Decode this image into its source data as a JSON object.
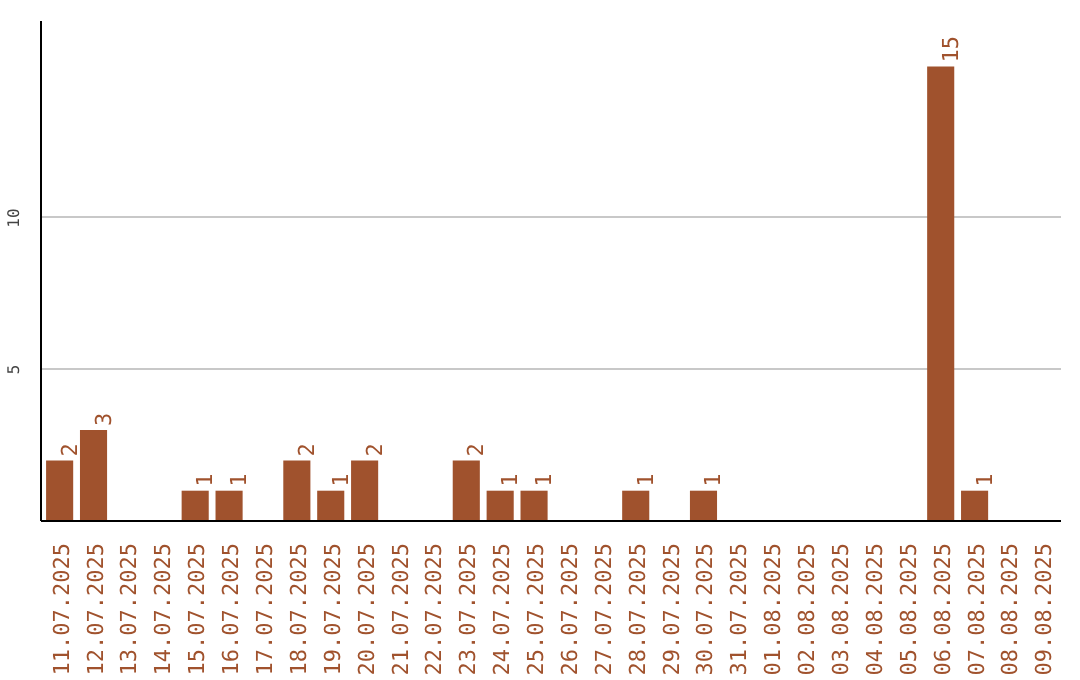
{
  "chart_data": {
    "type": "bar",
    "categories": [
      "11.07.2025",
      "12.07.2025",
      "13.07.2025",
      "14.07.2025",
      "15.07.2025",
      "16.07.2025",
      "17.07.2025",
      "18.07.2025",
      "19.07.2025",
      "20.07.2025",
      "21.07.2025",
      "22.07.2025",
      "23.07.2025",
      "24.07.2025",
      "25.07.2025",
      "26.07.2025",
      "27.07.2025",
      "28.07.2025",
      "29.07.2025",
      "30.07.2025",
      "31.07.2025",
      "01.08.2025",
      "02.08.2025",
      "03.08.2025",
      "04.08.2025",
      "05.08.2025",
      "06.08.2025",
      "07.08.2025",
      "08.08.2025",
      "09.08.2025"
    ],
    "values": [
      2,
      3,
      0,
      0,
      1,
      1,
      0,
      2,
      1,
      2,
      0,
      0,
      2,
      1,
      1,
      0,
      0,
      1,
      0,
      1,
      0,
      0,
      0,
      0,
      0,
      0,
      15,
      1,
      0,
      0
    ],
    "value_labels": [
      "2",
      "3",
      null,
      null,
      "1",
      "1",
      null,
      "2",
      "1",
      "2",
      null,
      null,
      "2",
      "1",
      "1",
      null,
      null,
      "1",
      null,
      "1",
      null,
      null,
      null,
      null,
      null,
      null,
      "15",
      "1",
      null,
      null
    ],
    "color": "#a0522d",
    "ylim": [
      0,
      16.5
    ],
    "yticks": [
      5,
      10
    ],
    "grid": "y"
  }
}
